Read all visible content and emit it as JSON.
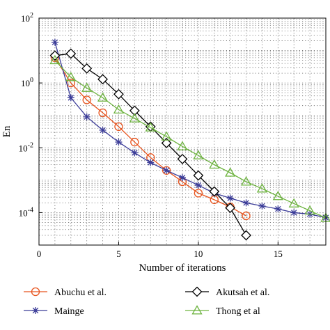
{
  "chart_data": {
    "type": "line",
    "xlabel": "Number of iterations",
    "ylabel": "En",
    "xlim": [
      0,
      18
    ],
    "ylim_log10": [
      -5,
      2
    ],
    "yscale": "log",
    "grid": true,
    "legend_position": "bottom",
    "x_ticks": [
      0,
      5,
      10,
      15
    ],
    "x_tick_labels": [
      "0",
      "5",
      "10",
      "15"
    ],
    "y_ticks_exp": [
      2,
      0,
      -2,
      -4
    ],
    "y_tick_base": "10",
    "y_tick_exps": [
      "2",
      "0",
      "-2",
      "-4"
    ],
    "series": [
      {
        "name": "Abuchu et al.",
        "color": "#e8541e",
        "marker": "circle",
        "x": [
          1,
          2,
          3,
          4,
          5,
          6,
          7,
          8,
          9,
          10,
          11,
          12,
          13
        ],
        "y": [
          6,
          1.0,
          0.3,
          0.12,
          0.045,
          0.015,
          0.005,
          0.002,
          0.0009,
          0.0004,
          0.00025,
          0.00015,
          8e-05
        ]
      },
      {
        "name": "Mainge",
        "color": "#3b3c98",
        "marker": "star",
        "x": [
          1,
          2,
          3,
          4,
          5,
          6,
          7,
          8,
          9,
          10,
          11,
          12,
          13,
          14,
          15,
          16,
          17,
          18
        ],
        "y": [
          18,
          0.35,
          0.09,
          0.035,
          0.015,
          0.007,
          0.0035,
          0.002,
          0.0012,
          0.0007,
          0.0004,
          0.00028,
          0.0002,
          0.00016,
          0.00013,
          0.0001,
          9e-05,
          7e-05
        ]
      },
      {
        "name": "Akutsah et al.",
        "color": "#000000",
        "marker": "diamond",
        "x": [
          1,
          2,
          3,
          4,
          5,
          6,
          7,
          8,
          9,
          10,
          11,
          12,
          13
        ],
        "y": [
          7,
          8,
          2.8,
          1.3,
          0.45,
          0.14,
          0.045,
          0.014,
          0.0045,
          0.0014,
          0.00045,
          0.00014,
          2e-05
        ]
      },
      {
        "name": "Thong et al",
        "color": "#6db33f",
        "marker": "triangle",
        "x": [
          1,
          2,
          3,
          4,
          5,
          6,
          7,
          8,
          9,
          10,
          11,
          12,
          13,
          14,
          15,
          16,
          17,
          18
        ],
        "y": [
          5,
          1.5,
          0.7,
          0.35,
          0.15,
          0.08,
          0.042,
          0.022,
          0.011,
          0.0058,
          0.003,
          0.0017,
          0.0009,
          0.00055,
          0.00032,
          0.00019,
          0.000115,
          6.8e-05
        ]
      }
    ]
  }
}
